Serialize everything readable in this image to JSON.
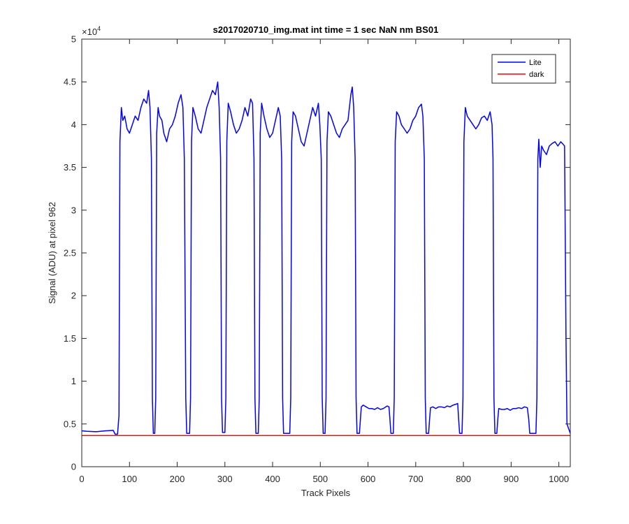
{
  "chart_data": {
    "type": "line",
    "title": "s2017020710_img.mat int time = 1 sec  NaN nm BS01",
    "xlabel": "Track Pixels",
    "ylabel": "Signal (ADU) at pixel 962",
    "xlim": [
      0,
      1024
    ],
    "ylim": [
      0,
      50000
    ],
    "x_ticks": [
      0,
      100,
      200,
      300,
      400,
      500,
      600,
      700,
      800,
      900,
      1000
    ],
    "y_ticks": [
      0,
      5000,
      10000,
      15000,
      20000,
      25000,
      30000,
      35000,
      40000,
      45000,
      50000
    ],
    "y_tick_labels": [
      "0",
      "0.5",
      "1",
      "1.5",
      "2",
      "2.5",
      "3",
      "3.5",
      "4",
      "4.5",
      "5"
    ],
    "y_exponent_label": "×10",
    "y_exponent_power": "4",
    "grid": false,
    "legend_position": "top-right",
    "series": [
      {
        "name": "Lite",
        "color": "#0000ff",
        "points": [
          [
            0,
            4200
          ],
          [
            10,
            4150
          ],
          [
            30,
            4100
          ],
          [
            50,
            4200
          ],
          [
            66,
            4250
          ],
          [
            70,
            3800
          ],
          [
            75,
            3800
          ],
          [
            78,
            6000
          ],
          [
            80,
            38000
          ],
          [
            83,
            42000
          ],
          [
            86,
            40500
          ],
          [
            90,
            41000
          ],
          [
            95,
            39500
          ],
          [
            100,
            39000
          ],
          [
            106,
            40000
          ],
          [
            112,
            41000
          ],
          [
            118,
            40500
          ],
          [
            124,
            42000
          ],
          [
            130,
            43000
          ],
          [
            136,
            42500
          ],
          [
            140,
            44000
          ],
          [
            143,
            42000
          ],
          [
            146,
            36000
          ],
          [
            148,
            8000
          ],
          [
            150,
            3900
          ],
          [
            153,
            3900
          ],
          [
            155,
            8000
          ],
          [
            157,
            39000
          ],
          [
            160,
            42000
          ],
          [
            163,
            41000
          ],
          [
            168,
            40500
          ],
          [
            172,
            39000
          ],
          [
            178,
            38000
          ],
          [
            184,
            39500
          ],
          [
            190,
            40000
          ],
          [
            196,
            41000
          ],
          [
            202,
            42500
          ],
          [
            208,
            43500
          ],
          [
            212,
            42000
          ],
          [
            215,
            36000
          ],
          [
            218,
            8000
          ],
          [
            220,
            3900
          ],
          [
            226,
            3900
          ],
          [
            228,
            8000
          ],
          [
            230,
            38000
          ],
          [
            233,
            42000
          ],
          [
            238,
            41000
          ],
          [
            244,
            39500
          ],
          [
            250,
            39000
          ],
          [
            256,
            40500
          ],
          [
            262,
            42000
          ],
          [
            268,
            43000
          ],
          [
            274,
            44000
          ],
          [
            280,
            43500
          ],
          [
            285,
            45000
          ],
          [
            288,
            42000
          ],
          [
            291,
            36000
          ],
          [
            293,
            8000
          ],
          [
            295,
            4000
          ],
          [
            300,
            4000
          ],
          [
            302,
            8000
          ],
          [
            304,
            38000
          ],
          [
            307,
            42500
          ],
          [
            312,
            41500
          ],
          [
            318,
            40000
          ],
          [
            324,
            39000
          ],
          [
            330,
            39500
          ],
          [
            336,
            40500
          ],
          [
            342,
            42000
          ],
          [
            348,
            41000
          ],
          [
            354,
            43000
          ],
          [
            358,
            42500
          ],
          [
            361,
            36000
          ],
          [
            363,
            8000
          ],
          [
            365,
            3900
          ],
          [
            370,
            3900
          ],
          [
            372,
            8000
          ],
          [
            374,
            39000
          ],
          [
            377,
            42500
          ],
          [
            382,
            41000
          ],
          [
            388,
            39500
          ],
          [
            394,
            38500
          ],
          [
            400,
            39000
          ],
          [
            406,
            40500
          ],
          [
            412,
            42000
          ],
          [
            416,
            41000
          ],
          [
            419,
            36000
          ],
          [
            421,
            8000
          ],
          [
            423,
            3900
          ],
          [
            436,
            3900
          ],
          [
            438,
            8000
          ],
          [
            440,
            38000
          ],
          [
            443,
            41500
          ],
          [
            448,
            41000
          ],
          [
            454,
            39500
          ],
          [
            460,
            38000
          ],
          [
            466,
            37500
          ],
          [
            472,
            39000
          ],
          [
            478,
            40500
          ],
          [
            484,
            42000
          ],
          [
            490,
            41000
          ],
          [
            496,
            42500
          ],
          [
            499,
            40000
          ],
          [
            502,
            36000
          ],
          [
            504,
            8000
          ],
          [
            506,
            3900
          ],
          [
            510,
            3900
          ],
          [
            512,
            8000
          ],
          [
            514,
            38000
          ],
          [
            517,
            41500
          ],
          [
            522,
            41000
          ],
          [
            528,
            40000
          ],
          [
            534,
            39000
          ],
          [
            540,
            38500
          ],
          [
            546,
            39500
          ],
          [
            552,
            40000
          ],
          [
            558,
            40500
          ],
          [
            564,
            43500
          ],
          [
            567,
            44400
          ],
          [
            570,
            42000
          ],
          [
            573,
            36000
          ],
          [
            575,
            8000
          ],
          [
            577,
            3900
          ],
          [
            582,
            3900
          ],
          [
            584,
            5500
          ],
          [
            586,
            7000
          ],
          [
            590,
            7200
          ],
          [
            596,
            7000
          ],
          [
            602,
            6800
          ],
          [
            608,
            6800
          ],
          [
            614,
            6700
          ],
          [
            620,
            6900
          ],
          [
            626,
            6700
          ],
          [
            632,
            6800
          ],
          [
            640,
            7100
          ],
          [
            644,
            7000
          ],
          [
            646,
            5500
          ],
          [
            648,
            3900
          ],
          [
            653,
            3900
          ],
          [
            655,
            8000
          ],
          [
            657,
            38000
          ],
          [
            660,
            41500
          ],
          [
            665,
            41000
          ],
          [
            670,
            40000
          ],
          [
            676,
            39500
          ],
          [
            682,
            39000
          ],
          [
            688,
            39500
          ],
          [
            694,
            40500
          ],
          [
            700,
            41000
          ],
          [
            706,
            42000
          ],
          [
            712,
            42400
          ],
          [
            715,
            41000
          ],
          [
            718,
            36000
          ],
          [
            720,
            8000
          ],
          [
            722,
            3900
          ],
          [
            727,
            3900
          ],
          [
            729,
            5500
          ],
          [
            731,
            6900
          ],
          [
            736,
            7000
          ],
          [
            742,
            6800
          ],
          [
            748,
            7000
          ],
          [
            754,
            7000
          ],
          [
            760,
            6900
          ],
          [
            766,
            7100
          ],
          [
            772,
            7000
          ],
          [
            778,
            7200
          ],
          [
            784,
            7300
          ],
          [
            788,
            7400
          ],
          [
            790,
            5500
          ],
          [
            792,
            3900
          ],
          [
            797,
            3900
          ],
          [
            799,
            8000
          ],
          [
            801,
            38000
          ],
          [
            804,
            42000
          ],
          [
            808,
            41000
          ],
          [
            814,
            40500
          ],
          [
            820,
            40000
          ],
          [
            826,
            39500
          ],
          [
            832,
            40000
          ],
          [
            838,
            40800
          ],
          [
            844,
            41000
          ],
          [
            850,
            40500
          ],
          [
            856,
            41500
          ],
          [
            860,
            40000
          ],
          [
            862,
            36000
          ],
          [
            864,
            8000
          ],
          [
            866,
            3900
          ],
          [
            870,
            3900
          ],
          [
            872,
            5500
          ],
          [
            874,
            6800
          ],
          [
            880,
            6700
          ],
          [
            886,
            6700
          ],
          [
            892,
            6800
          ],
          [
            898,
            6600
          ],
          [
            904,
            6800
          ],
          [
            910,
            6800
          ],
          [
            916,
            6900
          ],
          [
            922,
            6800
          ],
          [
            928,
            7000
          ],
          [
            934,
            6900
          ],
          [
            937,
            5500
          ],
          [
            939,
            3900
          ],
          [
            952,
            3900
          ],
          [
            954,
            8000
          ],
          [
            956,
            36000
          ],
          [
            958,
            38300
          ],
          [
            961,
            35000
          ],
          [
            964,
            37500
          ],
          [
            968,
            37000
          ],
          [
            974,
            36500
          ],
          [
            980,
            37500
          ],
          [
            986,
            37800
          ],
          [
            992,
            38000
          ],
          [
            998,
            37500
          ],
          [
            1004,
            38000
          ],
          [
            1009,
            37700
          ],
          [
            1012,
            37500
          ],
          [
            1015,
            15000
          ],
          [
            1017,
            5000
          ],
          [
            1024,
            3900
          ]
        ]
      },
      {
        "name": "dark",
        "color": "#ff0000",
        "points": [
          [
            0,
            3650
          ],
          [
            100,
            3650
          ],
          [
            200,
            3650
          ],
          [
            300,
            3650
          ],
          [
            400,
            3650
          ],
          [
            500,
            3650
          ],
          [
            600,
            3650
          ],
          [
            700,
            3650
          ],
          [
            800,
            3650
          ],
          [
            900,
            3650
          ],
          [
            1000,
            3650
          ],
          [
            1024,
            3650
          ]
        ]
      }
    ]
  }
}
